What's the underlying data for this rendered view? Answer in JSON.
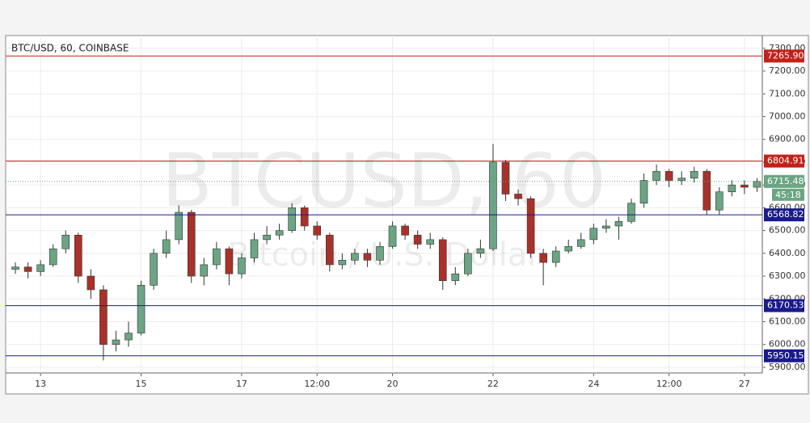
{
  "chart_data": {
    "type": "candlestick",
    "title": "BTC/USD, 60, COINBASE",
    "watermark": "BTCUSD, 60",
    "watermark_subtitle": "Bitcoin / U.S. Dollar",
    "up_color": "#6ba583",
    "down_color": "#a8322a",
    "grid": true,
    "x": [
      12.5,
      12.75,
      13,
      13.25,
      13.5,
      13.75,
      14,
      14.25,
      14.5,
      14.75,
      15,
      15.25,
      15.5,
      15.75,
      16,
      16.25,
      16.5,
      16.75,
      17,
      17.25,
      17.5,
      17.75,
      18,
      18.25,
      18.5,
      18.75,
      19,
      19.25,
      19.5,
      19.75,
      20,
      20.25,
      20.5,
      20.75,
      21,
      21.25,
      21.5,
      21.75,
      22,
      22.25,
      22.5,
      22.75,
      23,
      23.25,
      23.5,
      23.75,
      24,
      24.25,
      24.5,
      24.75,
      25,
      25.25,
      25.5,
      25.75,
      26,
      26.25,
      26.5,
      26.75,
      27,
      27.25
    ],
    "open": [
      6330,
      6340,
      6320,
      6350,
      6420,
      6480,
      6300,
      6240,
      6000,
      6020,
      6050,
      6260,
      6400,
      6460,
      6580,
      6300,
      6350,
      6420,
      6310,
      6380,
      6460,
      6480,
      6500,
      6600,
      6520,
      6480,
      6350,
      6370,
      6400,
      6370,
      6430,
      6520,
      6480,
      6440,
      6460,
      6280,
      6310,
      6400,
      6420,
      6800,
      6660,
      6640,
      6400,
      6360,
      6410,
      6430,
      6460,
      6510,
      6520,
      6540,
      6620,
      6720,
      6760,
      6720,
      6730,
      6760,
      6590,
      6670,
      6700,
      6690
    ],
    "high": [
      6360,
      6360,
      6370,
      6440,
      6500,
      6490,
      6330,
      6260,
      6060,
      6100,
      6280,
      6420,
      6500,
      6610,
      6590,
      6380,
      6450,
      6430,
      6400,
      6490,
      6520,
      6530,
      6620,
      6610,
      6540,
      6490,
      6400,
      6420,
      6420,
      6450,
      6540,
      6530,
      6500,
      6490,
      6470,
      6340,
      6420,
      6460,
      6880,
      6810,
      6680,
      6650,
      6420,
      6430,
      6460,
      6490,
      6530,
      6550,
      6560,
      6640,
      6750,
      6790,
      6770,
      6760,
      6780,
      6770,
      6690,
      6720,
      6720,
      6730
    ],
    "low": [
      6310,
      6290,
      6300,
      6340,
      6400,
      6270,
      6200,
      5930,
      5970,
      5990,
      6040,
      6240,
      6380,
      6440,
      6270,
      6260,
      6330,
      6260,
      6290,
      6360,
      6440,
      6460,
      6490,
      6500,
      6460,
      6320,
      6330,
      6350,
      6340,
      6350,
      6420,
      6460,
      6420,
      6420,
      6240,
      6260,
      6300,
      6380,
      6410,
      6630,
      6610,
      6380,
      6260,
      6340,
      6400,
      6420,
      6440,
      6490,
      6460,
      6530,
      6600,
      6700,
      6690,
      6700,
      6710,
      6570,
      6570,
      6650,
      6660,
      6670
    ],
    "close": [
      6340,
      6320,
      6350,
      6420,
      6480,
      6300,
      6240,
      6000,
      6020,
      6050,
      6260,
      6400,
      6460,
      6580,
      6300,
      6350,
      6420,
      6310,
      6380,
      6460,
      6480,
      6500,
      6600,
      6520,
      6480,
      6350,
      6370,
      6400,
      6370,
      6430,
      6520,
      6480,
      6440,
      6460,
      6280,
      6310,
      6400,
      6420,
      6800,
      6660,
      6640,
      6400,
      6360,
      6410,
      6430,
      6460,
      6510,
      6520,
      6540,
      6620,
      6720,
      6760,
      6720,
      6730,
      6760,
      6590,
      6670,
      6700,
      6690,
      6715.48
    ],
    "xlim": [
      12.306,
      27.355
    ],
    "xticks": [
      {
        "value": 13,
        "label": "13"
      },
      {
        "value": 15,
        "label": "15"
      },
      {
        "value": 17,
        "label": "17"
      },
      {
        "value": 18.5,
        "label": "12:00"
      },
      {
        "value": 20,
        "label": "20"
      },
      {
        "value": 22,
        "label": "22"
      },
      {
        "value": 24,
        "label": "24"
      },
      {
        "value": 25.5,
        "label": "12:00"
      },
      {
        "value": 27,
        "label": "27"
      }
    ],
    "ylim": [
      5875,
      7356
    ],
    "yticks": [
      {
        "value": 5900,
        "label": "5900.00"
      },
      {
        "value": 6000,
        "label": "6000.00"
      },
      {
        "value": 6100,
        "label": "6100.00"
      },
      {
        "value": 6200,
        "label": "6200.00"
      },
      {
        "value": 6300,
        "label": "6300.00"
      },
      {
        "value": 6400,
        "label": "6400.00"
      },
      {
        "value": 6500,
        "label": "6500.00"
      },
      {
        "value": 6600,
        "label": "6600.00"
      },
      {
        "value": 6700,
        "label": "6700.00"
      },
      {
        "value": 6800,
        "label": "6800.00"
      },
      {
        "value": 6900,
        "label": "6900.00"
      },
      {
        "value": 7000,
        "label": "7000.00"
      },
      {
        "value": 7100,
        "label": "7100.00"
      },
      {
        "value": 7200,
        "label": "7200.00"
      },
      {
        "value": 7300,
        "label": "7300.00"
      }
    ],
    "levels": [
      {
        "value": 7265.9,
        "label": "7265.90",
        "color": "#c0221a"
      },
      {
        "value": 6804.91,
        "label": "6804.91",
        "color": "#c0221a"
      },
      {
        "value": 6568.82,
        "label": "6568.82",
        "color": "#1a1a8c"
      },
      {
        "value": 6170.53,
        "label": "6170.53",
        "color": "#1a1a8c"
      },
      {
        "value": 5950.15,
        "label": "5950.15",
        "color": "#1a1a8c"
      }
    ],
    "last_price": {
      "value": 6715.48,
      "label": "6715.48",
      "countdown": "45:18",
      "color": "#6ba583"
    }
  }
}
